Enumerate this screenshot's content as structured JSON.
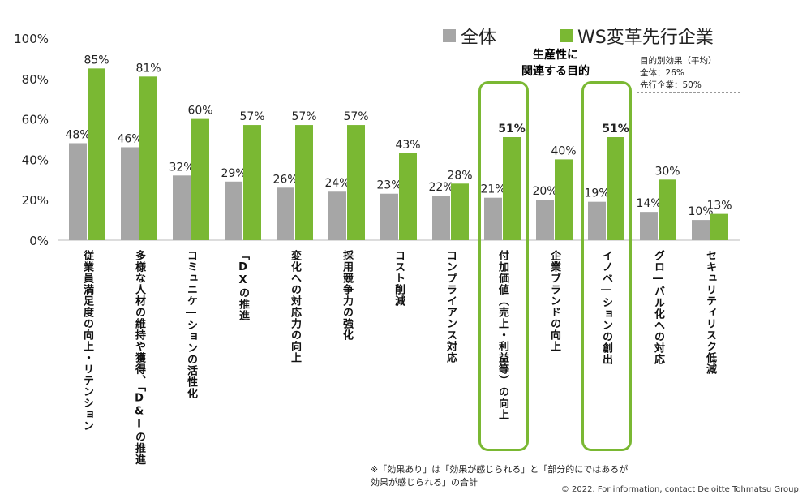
{
  "chart_data": {
    "type": "bar",
    "categories": [
      "従業員満足度の向上・リテンション",
      "多様な人材の維持や獲得、「D&Iの推進",
      "コミュニケ―ションの活性化",
      "「DXの推進",
      "変化への対応力の向上",
      "採用競争力の強化",
      "コスト削減",
      "コンプライアンス対応",
      "付加価値（売上・利益等）の向上",
      "企業ブランドの向上",
      "イノベ―ションの創出",
      "グロ―バル化への対応",
      "セキュリティリスク低減"
    ],
    "series": [
      {
        "name": "全体",
        "color": "#a6a6a6",
        "values": [
          48,
          46,
          32,
          29,
          26,
          24,
          23,
          22,
          21,
          20,
          19,
          14,
          10
        ]
      },
      {
        "name": "WS変革先行企業",
        "color": "#7ab833",
        "values": [
          85,
          81,
          60,
          57,
          57,
          57,
          43,
          28,
          51,
          40,
          51,
          30,
          13
        ]
      }
    ],
    "ylim": [
      0,
      100
    ],
    "yticks": [
      "0%",
      "20%",
      "40%",
      "60%",
      "80%",
      "100%"
    ],
    "ytick_values": [
      0,
      20,
      40,
      60,
      80,
      100
    ],
    "highlighted_categories": [
      8,
      10
    ],
    "legend_position": "top-right",
    "grid": false
  },
  "annotations": {
    "highlight_title_line1": "生産性に",
    "highlight_title_line2": "関連する目的",
    "avg_title": "目的別効果（平均）",
    "avg_all": "全体：26%",
    "avg_leading": "先行企業：50%"
  },
  "note_line1": "※「効果あり」は「効果が感じられる」と「部分的にではあるが",
  "note_line2": "効果が感じられる」の合計",
  "copyright": "© 2022. For information, contact Deloitte Tohmatsu Group."
}
